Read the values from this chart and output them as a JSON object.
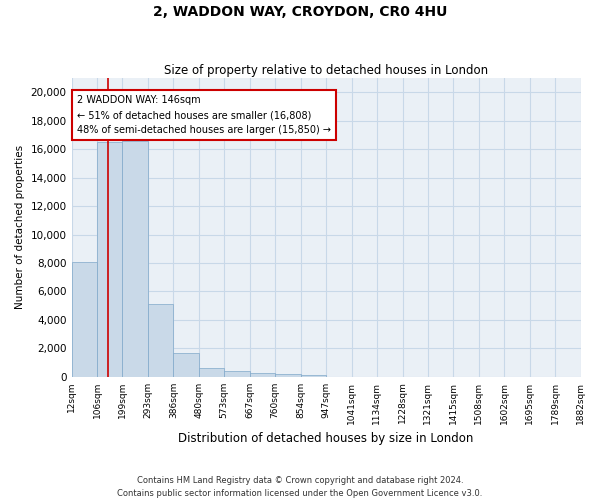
{
  "title_line1": "2, WADDON WAY, CROYDON, CR0 4HU",
  "title_line2": "Size of property relative to detached houses in London",
  "xlabel": "Distribution of detached houses by size in London",
  "ylabel": "Number of detached properties",
  "footer_line1": "Contains HM Land Registry data © Crown copyright and database right 2024.",
  "footer_line2": "Contains public sector information licensed under the Open Government Licence v3.0.",
  "annotation_title": "2 WADDON WAY: 146sqm",
  "annotation_line1": "← 51% of detached houses are smaller (16,808)",
  "annotation_line2": "48% of semi-detached houses are larger (15,850) →",
  "property_sqm": 146,
  "bar_color": "#c9d9e8",
  "bar_edge_color": "#7fa8c9",
  "vline_color": "#cc0000",
  "annotation_box_color": "#cc0000",
  "grid_color": "#c8d8e8",
  "background_color": "#eaf0f6",
  "bin_labels": [
    "12sqm",
    "106sqm",
    "199sqm",
    "293sqm",
    "386sqm",
    "480sqm",
    "573sqm",
    "667sqm",
    "760sqm",
    "854sqm",
    "947sqm",
    "1041sqm",
    "1134sqm",
    "1228sqm",
    "1321sqm",
    "1415sqm",
    "1508sqm",
    "1602sqm",
    "1695sqm",
    "1789sqm",
    "1882sqm"
  ],
  "bin_edges": [
    12,
    106,
    199,
    293,
    386,
    480,
    573,
    667,
    760,
    854,
    947,
    1041,
    1134,
    1228,
    1321,
    1415,
    1508,
    1602,
    1695,
    1789,
    1882
  ],
  "bar_heights": [
    8050,
    16500,
    16600,
    5100,
    1700,
    600,
    380,
    250,
    180,
    130,
    0,
    0,
    0,
    0,
    0,
    0,
    0,
    0,
    0,
    0
  ],
  "ylim": [
    0,
    21000
  ],
  "yticks": [
    0,
    2000,
    4000,
    6000,
    8000,
    10000,
    12000,
    14000,
    16000,
    18000,
    20000
  ]
}
